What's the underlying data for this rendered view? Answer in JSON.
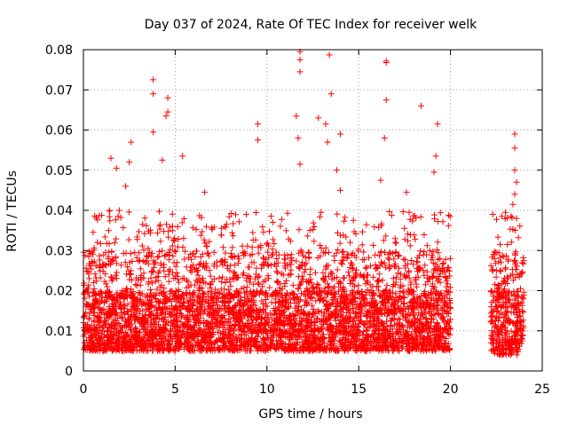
{
  "chart_data": {
    "type": "scatter",
    "title": "Day 037 of 2024, Rate Of TEC Index for receiver welk",
    "xlabel": "GPS time / hours",
    "ylabel": "ROTI / TECUs",
    "xlim": [
      0,
      25
    ],
    "ylim": [
      0,
      0.08
    ],
    "xticks": [
      0,
      5,
      10,
      15,
      20,
      25
    ],
    "xtick_labels": [
      "0",
      "5",
      "10",
      "15",
      "20",
      "25"
    ],
    "yticks": [
      0,
      0.01,
      0.02,
      0.03,
      0.04,
      0.05,
      0.06,
      0.07,
      0.08
    ],
    "ytick_labels": [
      "0",
      "0.01",
      "0.02",
      "0.03",
      "0.04",
      "0.05",
      "0.06",
      "0.07",
      "0.08"
    ],
    "grid": true,
    "marker": "plus",
    "color": "#ff0000",
    "series": [
      {
        "name": "ROTI",
        "segments": [
          {
            "x_range": [
              0.0,
              20.0
            ],
            "y_base": [
              0.005,
              0.02
            ],
            "y_peak": [
              0.03,
              0.04
            ]
          },
          {
            "x_range": [
              22.2,
              24.0
            ],
            "y_base": [
              0.004,
              0.02
            ],
            "y_peak": [
              0.03,
              0.039
            ]
          }
        ],
        "notable_points": [
          {
            "x": 11.8,
            "y": 0.0795
          },
          {
            "x": 11.8,
            "y": 0.0775
          },
          {
            "x": 11.8,
            "y": 0.0745
          },
          {
            "x": 13.4,
            "y": 0.0787
          },
          {
            "x": 16.5,
            "y": 0.0772
          },
          {
            "x": 16.5,
            "y": 0.0768
          },
          {
            "x": 3.8,
            "y": 0.0725
          },
          {
            "x": 3.8,
            "y": 0.069
          },
          {
            "x": 13.5,
            "y": 0.069
          },
          {
            "x": 16.5,
            "y": 0.0675
          },
          {
            "x": 4.6,
            "y": 0.068
          },
          {
            "x": 18.4,
            "y": 0.066
          },
          {
            "x": 4.6,
            "y": 0.0645
          },
          {
            "x": 4.5,
            "y": 0.0635
          },
          {
            "x": 12.8,
            "y": 0.063
          },
          {
            "x": 11.6,
            "y": 0.0635
          },
          {
            "x": 9.5,
            "y": 0.0615
          },
          {
            "x": 13.2,
            "y": 0.0615
          },
          {
            "x": 19.3,
            "y": 0.0615
          },
          {
            "x": 23.5,
            "y": 0.059
          },
          {
            "x": 3.8,
            "y": 0.0595
          },
          {
            "x": 14.0,
            "y": 0.059
          },
          {
            "x": 9.5,
            "y": 0.0575
          },
          {
            "x": 11.7,
            "y": 0.058
          },
          {
            "x": 16.4,
            "y": 0.058
          },
          {
            "x": 2.6,
            "y": 0.057
          },
          {
            "x": 13.3,
            "y": 0.057
          },
          {
            "x": 23.5,
            "y": 0.0555
          },
          {
            "x": 5.4,
            "y": 0.0535
          },
          {
            "x": 1.5,
            "y": 0.053
          },
          {
            "x": 19.2,
            "y": 0.0535
          },
          {
            "x": 2.5,
            "y": 0.052
          },
          {
            "x": 4.3,
            "y": 0.0525
          },
          {
            "x": 1.8,
            "y": 0.0505
          },
          {
            "x": 19.1,
            "y": 0.0495
          },
          {
            "x": 23.5,
            "y": 0.05
          },
          {
            "x": 11.8,
            "y": 0.0515
          },
          {
            "x": 13.8,
            "y": 0.05
          },
          {
            "x": 23.6,
            "y": 0.047
          },
          {
            "x": 16.2,
            "y": 0.0475
          },
          {
            "x": 2.3,
            "y": 0.046
          },
          {
            "x": 14.0,
            "y": 0.045
          },
          {
            "x": 6.6,
            "y": 0.0445
          },
          {
            "x": 17.6,
            "y": 0.0445
          },
          {
            "x": 23.5,
            "y": 0.044
          },
          {
            "x": 23.4,
            "y": 0.0415
          },
          {
            "x": 22.3,
            "y": 0.039
          },
          {
            "x": 23.0,
            "y": 0.0395
          },
          {
            "x": 22.8,
            "y": 0.0385
          },
          {
            "x": 23.6,
            "y": 0.038
          },
          {
            "x": 23.3,
            "y": 0.0385
          }
        ]
      }
    ]
  }
}
